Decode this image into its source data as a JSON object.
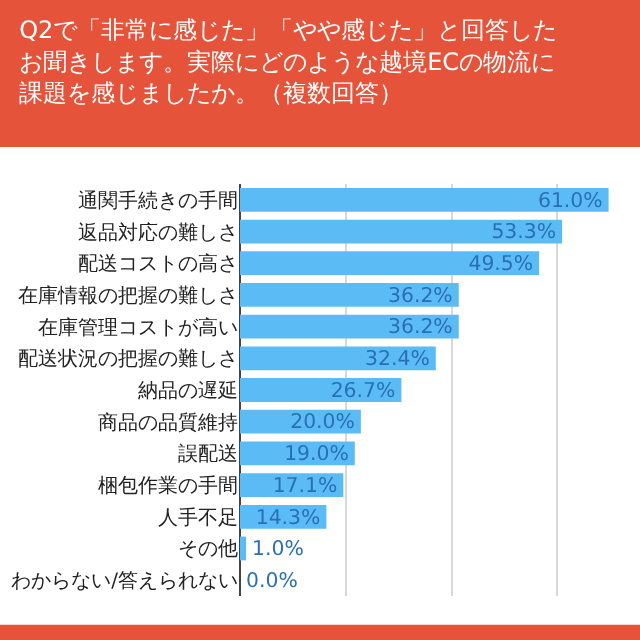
{
  "chart_data": {
    "type": "bar",
    "orientation": "horizontal",
    "title": "Q2で「非常に感じた」「やや感じた」と回答したお聞きします。実際にどのような越境ECの物流に課題を感じましたか。（複数回答）",
    "categories": [
      "通関手続きの手間",
      "返品対応の難しさ",
      "配送コストの高さ",
      "在庫情報の把握の難しさ",
      "在庫管理コストが高い",
      "配送状況の把握の難しさ",
      "納品の遅延",
      "商品の品質維持",
      "誤配送",
      "梱包作業の手間",
      "人手不足",
      "その他",
      "わからない/答えられない"
    ],
    "values": [
      61.0,
      53.3,
      49.5,
      36.2,
      36.2,
      32.4,
      26.7,
      20.0,
      19.0,
      17.1,
      14.3,
      1.0,
      0.0
    ],
    "value_labels": [
      "61.0%",
      "53.3%",
      "49.5%",
      "36.2%",
      "36.2%",
      "32.4%",
      "26.7%",
      "20.0%",
      "19.0%",
      "17.1%",
      "14.3%",
      "1.0%",
      "0.0%"
    ],
    "color": "#5bbcf5",
    "xticks": [
      {
        "value": 17.5,
        "label": null
      },
      {
        "value": 35,
        "label": null
      },
      {
        "value": 52.5,
        "label": null
      }
    ],
    "grid": "x",
    "tick_labels": "y",
    "legend": false
  }
}
